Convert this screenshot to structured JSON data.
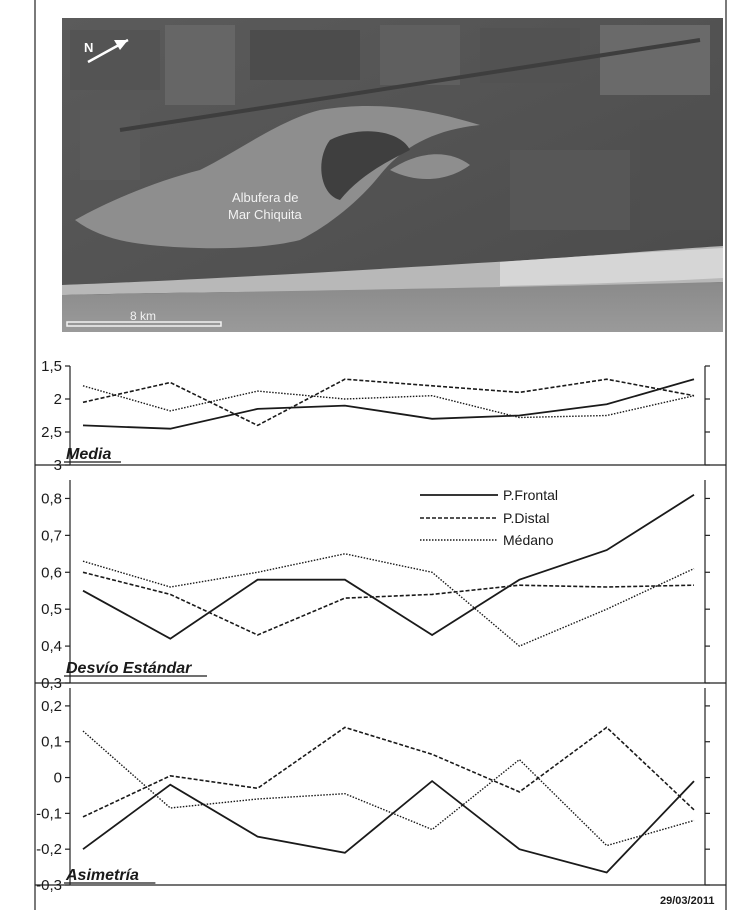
{
  "map": {
    "lagoon_label_line1": "Albufera de",
    "lagoon_label_line2": "Mar Chiquita",
    "north_label": "N",
    "scale_label": "8 km"
  },
  "date_label": "29/03/2011",
  "legend": {
    "frontal": "P.Frontal",
    "distal": "P.Distal",
    "medano": "Médano"
  },
  "colors": {
    "line": "#1a1a1a",
    "frame": "#222222"
  },
  "chart_data": [
    {
      "type": "line",
      "title": "Media",
      "ylim": [
        3,
        1.5
      ],
      "y_inverted": true,
      "yticks": [
        "1,5",
        "2",
        "2,5",
        "3"
      ],
      "x": [
        1,
        2,
        3,
        4,
        5,
        6,
        7,
        8
      ],
      "series": [
        {
          "name": "P.Frontal",
          "style": "solid",
          "values": [
            2.4,
            2.45,
            2.15,
            2.1,
            2.3,
            2.25,
            2.08,
            1.7
          ]
        },
        {
          "name": "P.Distal",
          "style": "dashed",
          "values": [
            2.05,
            1.75,
            2.4,
            1.7,
            1.8,
            1.9,
            1.7,
            1.95
          ]
        },
        {
          "name": "Médano",
          "style": "dotted",
          "values": [
            1.8,
            2.18,
            1.88,
            2.0,
            1.95,
            2.28,
            2.25,
            1.95
          ]
        }
      ]
    },
    {
      "type": "line",
      "title": "Desvío Estándar",
      "ylim": [
        0.3,
        0.85
      ],
      "yticks": [
        "0,3",
        "0,4",
        "0,5",
        "0,6",
        "0,7",
        "0,8"
      ],
      "x": [
        1,
        2,
        3,
        4,
        5,
        6,
        7,
        8
      ],
      "series": [
        {
          "name": "P.Frontal",
          "style": "solid",
          "values": [
            0.55,
            0.42,
            0.58,
            0.58,
            0.43,
            0.58,
            0.66,
            0.81
          ]
        },
        {
          "name": "P.Distal",
          "style": "dashed",
          "values": [
            0.6,
            0.54,
            0.43,
            0.53,
            0.54,
            0.565,
            0.56,
            0.565
          ]
        },
        {
          "name": "Médano",
          "style": "dotted",
          "values": [
            0.63,
            0.56,
            0.6,
            0.65,
            0.6,
            0.4,
            0.5,
            0.61
          ]
        }
      ]
    },
    {
      "type": "line",
      "title": "Asimetría",
      "ylim": [
        -0.3,
        0.25
      ],
      "yticks": [
        "0,2",
        "0,1",
        "0",
        "-0,1",
        "-0,2",
        "-0,3"
      ],
      "x": [
        1,
        2,
        3,
        4,
        5,
        6,
        7,
        8
      ],
      "series": [
        {
          "name": "P.Frontal",
          "style": "solid",
          "values": [
            -0.2,
            -0.02,
            -0.165,
            -0.21,
            -0.01,
            -0.2,
            -0.265,
            -0.01
          ]
        },
        {
          "name": "P.Distal",
          "style": "dashed",
          "values": [
            -0.11,
            0.005,
            -0.03,
            0.14,
            0.065,
            -0.04,
            0.14,
            -0.09
          ]
        },
        {
          "name": "Médano",
          "style": "dotted",
          "values": [
            0.13,
            -0.085,
            -0.06,
            -0.045,
            -0.145,
            0.05,
            -0.19,
            -0.12
          ]
        }
      ]
    }
  ]
}
